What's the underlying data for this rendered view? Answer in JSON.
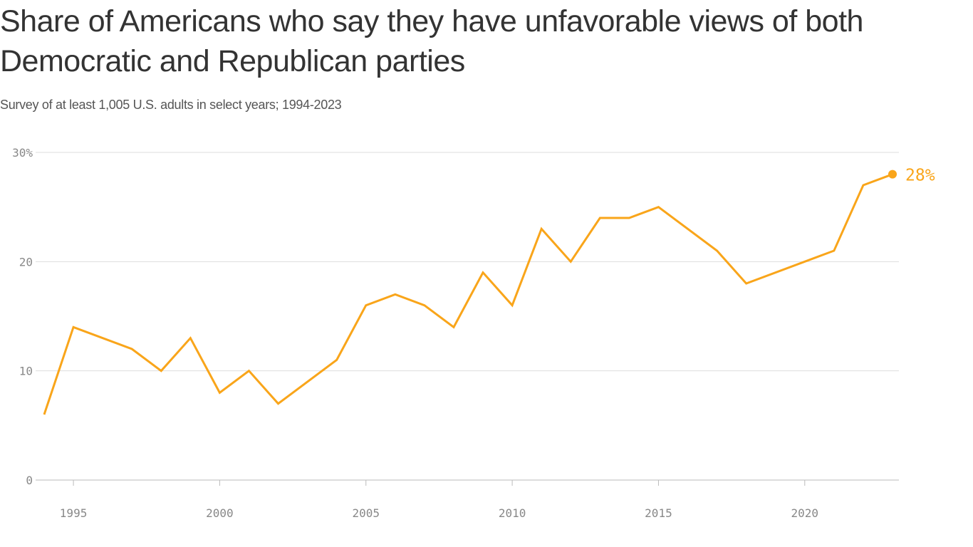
{
  "chart_data": {
    "type": "line",
    "title": "Share of Americans who say they have unfavorable views of both Democratic and Republican parties",
    "subtitle": "Survey of at least 1,005 U.S. adults in select years; 1994-2023",
    "xlabel": "",
    "ylabel": "",
    "xlim": [
      1994,
      2023
    ],
    "ylim": [
      0,
      30
    ],
    "x_ticks": [
      1995,
      2000,
      2005,
      2010,
      2015,
      2020
    ],
    "y_ticks": [
      0,
      10,
      20,
      30
    ],
    "y_tick_labels": [
      "0",
      "10",
      "20",
      "30%"
    ],
    "grid": true,
    "line_color": "#f9a51a",
    "end_label": "28%",
    "series": [
      {
        "x": [
          1994,
          1995,
          1997,
          1998,
          1999,
          2000,
          2001,
          2002,
          2004,
          2005,
          2006,
          2007,
          2008,
          2009,
          2010,
          2011,
          2012,
          2013,
          2014,
          2015,
          2017,
          2018,
          2021,
          2022,
          2023
        ],
        "y": [
          6,
          14,
          12,
          10,
          13,
          8,
          10,
          7,
          11,
          16,
          17,
          16,
          14,
          19,
          16,
          23,
          20,
          24,
          24,
          25,
          21,
          18,
          21,
          27,
          28
        ]
      }
    ]
  }
}
